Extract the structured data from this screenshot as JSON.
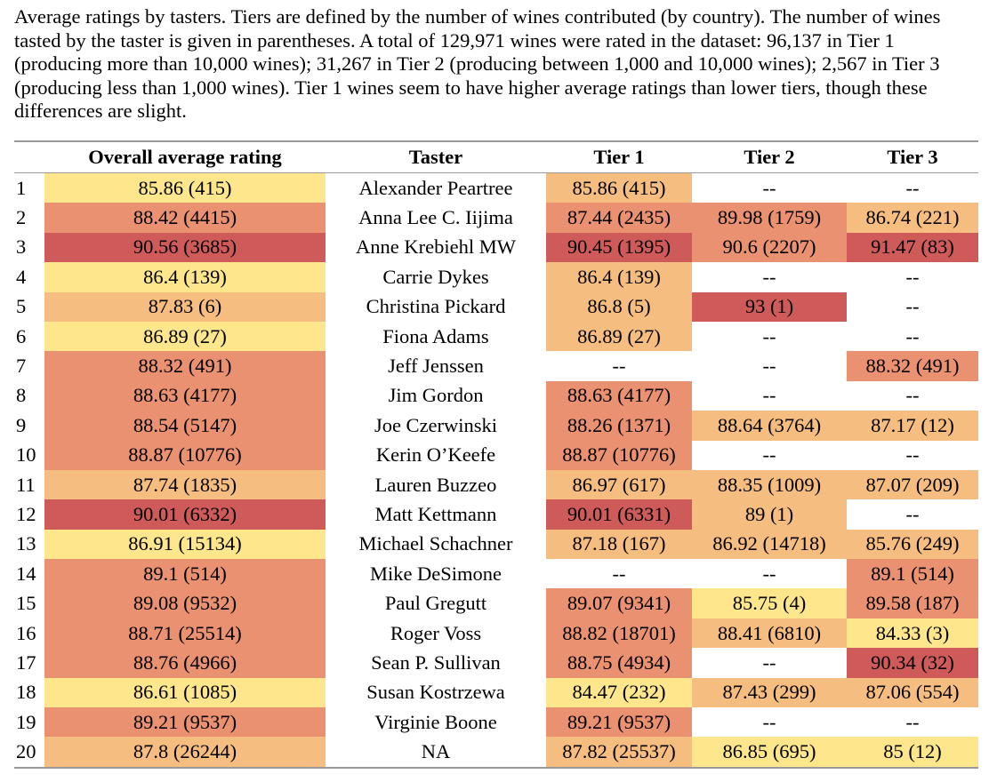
{
  "caption": "Average ratings by tasters. Tiers are defined by the number of wines contributed (by country). The number of wines tasted by the taster is given in parentheses. A total of 129,971 wines were rated in the dataset: 96,137 in Tier 1 (producing more than 10,000 wines); 31,267 in Tier 2 (producing between 1,000 and 10,000 wines); 2,567 in Tier 3 (producing less than 1,000 wines). Tier 1 wines seem to have higher average ratings than lower tiers, though these differences are slight.",
  "columns": [
    "",
    "Overall average rating",
    "Taster",
    "Tier 1",
    "Tier 2",
    "Tier 3"
  ],
  "colors": {
    "c1": "#fde68c",
    "c2": "#f6bd80",
    "c3": "#e99171",
    "c4": "#cf5a5a",
    "none": "#ffffff"
  },
  "rows": [
    {
      "idx": "1",
      "overall": "85.86 (415)",
      "overall_c": "c1",
      "taster": "Alexander Peartree",
      "t1": "85.86 (415)",
      "t1_c": "c2",
      "t2": "--",
      "t2_c": "none",
      "t3": "--",
      "t3_c": "none"
    },
    {
      "idx": "2",
      "overall": "88.42 (4415)",
      "overall_c": "c3",
      "taster": "Anna Lee C. Iijima",
      "t1": "87.44 (2435)",
      "t1_c": "c3",
      "t2": "89.98 (1759)",
      "t2_c": "c3",
      "t3": "86.74 (221)",
      "t3_c": "c2"
    },
    {
      "idx": "3",
      "overall": "90.56 (3685)",
      "overall_c": "c4",
      "taster": "Anne Krebiehl MW",
      "t1": "90.45 (1395)",
      "t1_c": "c4",
      "t2": "90.6 (2207)",
      "t2_c": "c3",
      "t3": "91.47 (83)",
      "t3_c": "c4"
    },
    {
      "idx": "4",
      "overall": "86.4 (139)",
      "overall_c": "c1",
      "taster": "Carrie Dykes",
      "t1": "86.4 (139)",
      "t1_c": "c2",
      "t2": "--",
      "t2_c": "none",
      "t3": "--",
      "t3_c": "none"
    },
    {
      "idx": "5",
      "overall": "87.83 (6)",
      "overall_c": "c2",
      "taster": "Christina Pickard",
      "t1": "86.8 (5)",
      "t1_c": "c2",
      "t2": "93 (1)",
      "t2_c": "c4",
      "t3": "--",
      "t3_c": "none"
    },
    {
      "idx": "6",
      "overall": "86.89 (27)",
      "overall_c": "c1",
      "taster": "Fiona Adams",
      "t1": "86.89 (27)",
      "t1_c": "c2",
      "t2": "--",
      "t2_c": "none",
      "t3": "--",
      "t3_c": "none"
    },
    {
      "idx": "7",
      "overall": "88.32 (491)",
      "overall_c": "c3",
      "taster": "Jeff Jenssen",
      "t1": "--",
      "t1_c": "none",
      "t2": "--",
      "t2_c": "none",
      "t3": "88.32 (491)",
      "t3_c": "c3"
    },
    {
      "idx": "8",
      "overall": "88.63 (4177)",
      "overall_c": "c3",
      "taster": "Jim Gordon",
      "t1": "88.63 (4177)",
      "t1_c": "c3",
      "t2": "--",
      "t2_c": "none",
      "t3": "--",
      "t3_c": "none"
    },
    {
      "idx": "9",
      "overall": "88.54 (5147)",
      "overall_c": "c3",
      "taster": "Joe Czerwinski",
      "t1": "88.26 (1371)",
      "t1_c": "c3",
      "t2": "88.64 (3764)",
      "t2_c": "c2",
      "t3": "87.17 (12)",
      "t3_c": "c2"
    },
    {
      "idx": "10",
      "overall": "88.87 (10776)",
      "overall_c": "c3",
      "taster": "Kerin O’Keefe",
      "t1": "88.87 (10776)",
      "t1_c": "c3",
      "t2": "--",
      "t2_c": "none",
      "t3": "--",
      "t3_c": "none"
    },
    {
      "idx": "11",
      "overall": "87.74 (1835)",
      "overall_c": "c2",
      "taster": "Lauren Buzzeo",
      "t1": "86.97 (617)",
      "t1_c": "c2",
      "t2": "88.35 (1009)",
      "t2_c": "c2",
      "t3": "87.07 (209)",
      "t3_c": "c2"
    },
    {
      "idx": "12",
      "overall": "90.01 (6332)",
      "overall_c": "c4",
      "taster": "Matt Kettmann",
      "t1": "90.01 (6331)",
      "t1_c": "c4",
      "t2": "89 (1)",
      "t2_c": "c2",
      "t3": "--",
      "t3_c": "none"
    },
    {
      "idx": "13",
      "overall": "86.91 (15134)",
      "overall_c": "c1",
      "taster": "Michael Schachner",
      "t1": "87.18 (167)",
      "t1_c": "c2",
      "t2": "86.92 (14718)",
      "t2_c": "c2",
      "t3": "85.76 (249)",
      "t3_c": "c2"
    },
    {
      "idx": "14",
      "overall": "89.1 (514)",
      "overall_c": "c3",
      "taster": "Mike DeSimone",
      "t1": "--",
      "t1_c": "none",
      "t2": "--",
      "t2_c": "none",
      "t3": "89.1 (514)",
      "t3_c": "c3"
    },
    {
      "idx": "15",
      "overall": "89.08 (9532)",
      "overall_c": "c3",
      "taster": "Paul Gregutt",
      "t1": "89.07 (9341)",
      "t1_c": "c3",
      "t2": "85.75 (4)",
      "t2_c": "c1",
      "t3": "89.58 (187)",
      "t3_c": "c3"
    },
    {
      "idx": "16",
      "overall": "88.71 (25514)",
      "overall_c": "c3",
      "taster": "Roger Voss",
      "t1": "88.82 (18701)",
      "t1_c": "c3",
      "t2": "88.41 (6810)",
      "t2_c": "c2",
      "t3": "84.33 (3)",
      "t3_c": "c1"
    },
    {
      "idx": "17",
      "overall": "88.76 (4966)",
      "overall_c": "c3",
      "taster": "Sean P. Sullivan",
      "t1": "88.75 (4934)",
      "t1_c": "c3",
      "t2": "--",
      "t2_c": "none",
      "t3": "90.34 (32)",
      "t3_c": "c4"
    },
    {
      "idx": "18",
      "overall": "86.61 (1085)",
      "overall_c": "c1",
      "taster": "Susan Kostrzewa",
      "t1": "84.47 (232)",
      "t1_c": "c1",
      "t2": "87.43 (299)",
      "t2_c": "c2",
      "t3": "87.06 (554)",
      "t3_c": "c2"
    },
    {
      "idx": "19",
      "overall": "89.21 (9537)",
      "overall_c": "c3",
      "taster": "Virginie Boone",
      "t1": "89.21 (9537)",
      "t1_c": "c3",
      "t2": "--",
      "t2_c": "none",
      "t3": "--",
      "t3_c": "none"
    },
    {
      "idx": "20",
      "overall": "87.8 (26244)",
      "overall_c": "c2",
      "taster": "NA",
      "t1": "87.82 (25537)",
      "t1_c": "c2",
      "t2": "86.85 (695)",
      "t2_c": "c1",
      "t3": "85 (12)",
      "t3_c": "c1"
    }
  ]
}
